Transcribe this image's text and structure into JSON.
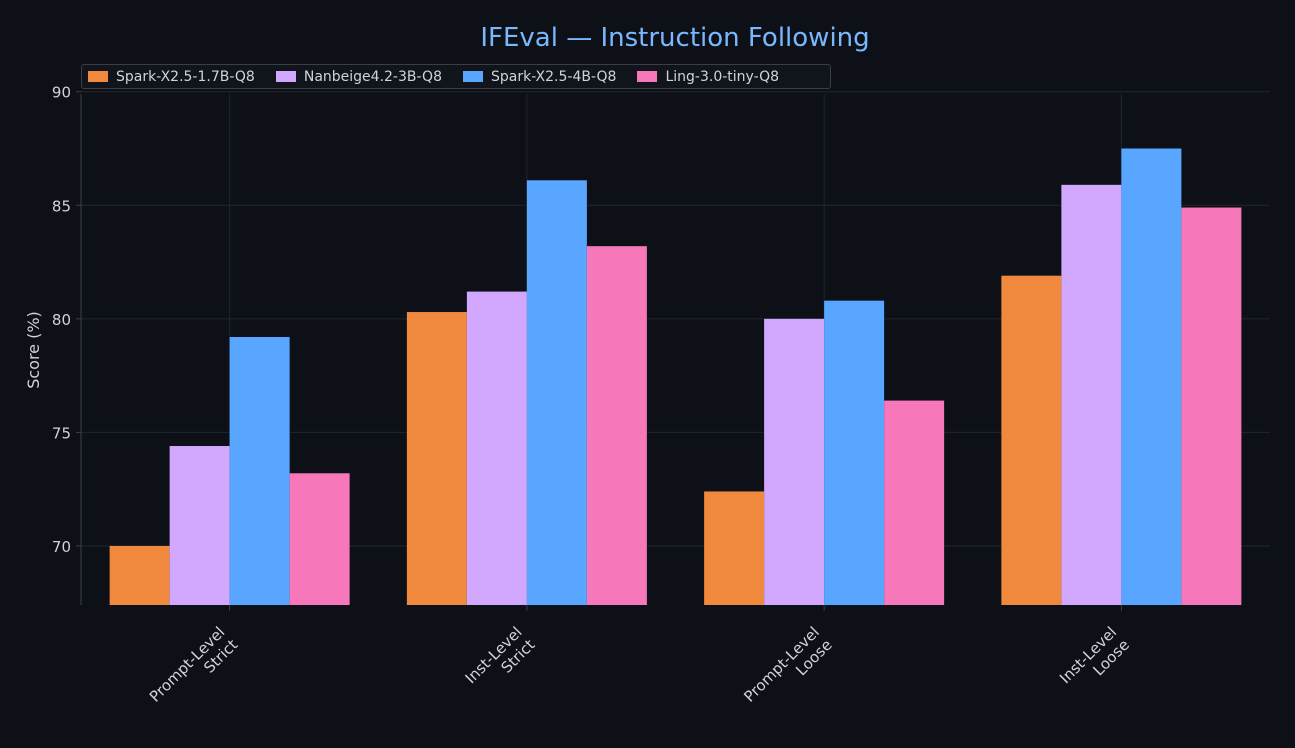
{
  "chart_data": {
    "type": "bar",
    "title": "IFEval — Instruction Following",
    "xlabel": "",
    "ylabel": "Score (%)",
    "ylim": [
      67.4,
      89.9
    ],
    "yticks": [
      "70",
      "75",
      "80",
      "85",
      "90"
    ],
    "categories": [
      [
        "Prompt-Level",
        "Strict"
      ],
      [
        "Inst-Level",
        "Strict"
      ],
      [
        "Prompt-Level",
        "Loose"
      ],
      [
        "Inst-Level",
        "Loose"
      ]
    ],
    "series": [
      {
        "name": "Spark-X2.5-1.7B-Q8",
        "color": "#f0883e",
        "values": [
          70.0,
          80.3,
          72.4,
          81.9
        ]
      },
      {
        "name": "Nanbeige4.2-3B-Q8",
        "color": "#d2a8ff",
        "values": [
          74.4,
          81.2,
          80.0,
          85.9
        ]
      },
      {
        "name": "Spark-X2.5-4B-Q8",
        "color": "#58a6ff",
        "values": [
          79.2,
          86.1,
          80.8,
          87.5
        ]
      },
      {
        "name": "Ling-3.0-tiny-Q8",
        "color": "#f778ba",
        "values": [
          73.2,
          83.2,
          76.4,
          84.9
        ]
      }
    ],
    "grid": true,
    "legend_position": "top-left",
    "colors": {
      "background": "#0d1117",
      "title": "#79b8ff",
      "text": "#d0d4da",
      "grid": "#21262d",
      "axis": "#3a3f47"
    }
  }
}
